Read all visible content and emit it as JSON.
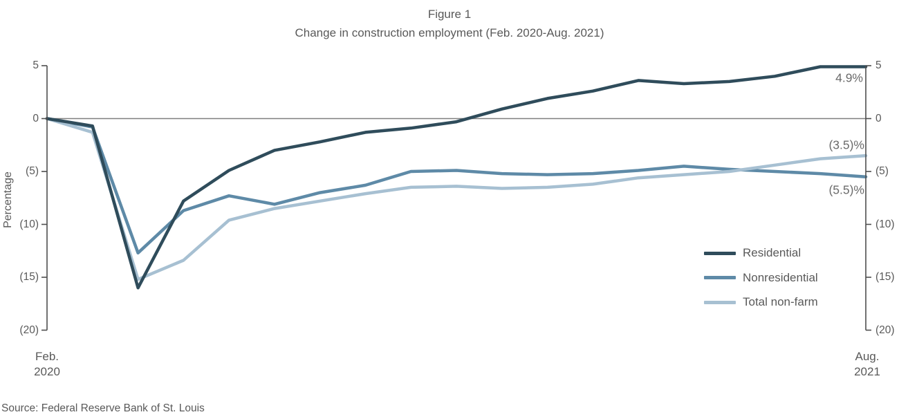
{
  "chart_data": {
    "type": "line",
    "title": "Figure 1",
    "subtitle": "Change in construction employment (Feb. 2020-Aug. 2021)",
    "ylabel": "Percentage",
    "ylim": [
      -20,
      5
    ],
    "y_tick_values": [
      5,
      0,
      -5,
      -10,
      -15,
      -20
    ],
    "y_tick_labels": [
      "5",
      "0",
      "(5)",
      "(10)",
      "(15)",
      "(20)"
    ],
    "grid": false,
    "zero_line": true,
    "legend_position": "right-center",
    "x": [
      "Feb 2020",
      "Mar 2020",
      "Apr 2020",
      "May 2020",
      "Jun 2020",
      "Jul 2020",
      "Aug 2020",
      "Sep 2020",
      "Oct 2020",
      "Nov 2020",
      "Dec 2020",
      "Jan 2021",
      "Feb 2021",
      "Mar 2021",
      "Apr 2021",
      "May 2021",
      "Jun 2021",
      "Jul 2021",
      "Aug 2021"
    ],
    "x_axis": {
      "left": {
        "line1": "Feb.",
        "line2": "2020"
      },
      "right": {
        "line1": "Aug.",
        "line2": "2021"
      }
    },
    "series": [
      {
        "name": "Residential",
        "color": "#2F4C5B",
        "end_label": "4.9%",
        "values": [
          0,
          -0.7,
          -16,
          -7.8,
          -4.9,
          -3,
          -2.2,
          -1.3,
          -0.9,
          -0.3,
          0.9,
          1.9,
          2.6,
          3.6,
          3.3,
          3.5,
          4,
          4.9,
          4.9
        ]
      },
      {
        "name": "Nonresidential",
        "color": "#5E8AA7",
        "end_label": "(5.5)%",
        "values": [
          0,
          -0.8,
          -12.7,
          -8.7,
          -7.3,
          -8.1,
          -7,
          -6.3,
          -5,
          -4.9,
          -5.2,
          -5.3,
          -5.2,
          -4.9,
          -4.5,
          -4.8,
          -5,
          -5.2,
          -5.5
        ]
      },
      {
        "name": "Total non-farm",
        "color": "#A7C0D2",
        "end_label": "(3.5)%",
        "values": [
          0,
          -1.3,
          -15.2,
          -13.4,
          -9.6,
          -8.5,
          -7.8,
          -7.1,
          -6.5,
          -6.4,
          -6.6,
          -6.5,
          -6.2,
          -5.6,
          -5.3,
          -5,
          -4.4,
          -3.8,
          -3.5
        ]
      }
    ],
    "source": "Source: Federal Reserve Bank of St. Louis"
  }
}
